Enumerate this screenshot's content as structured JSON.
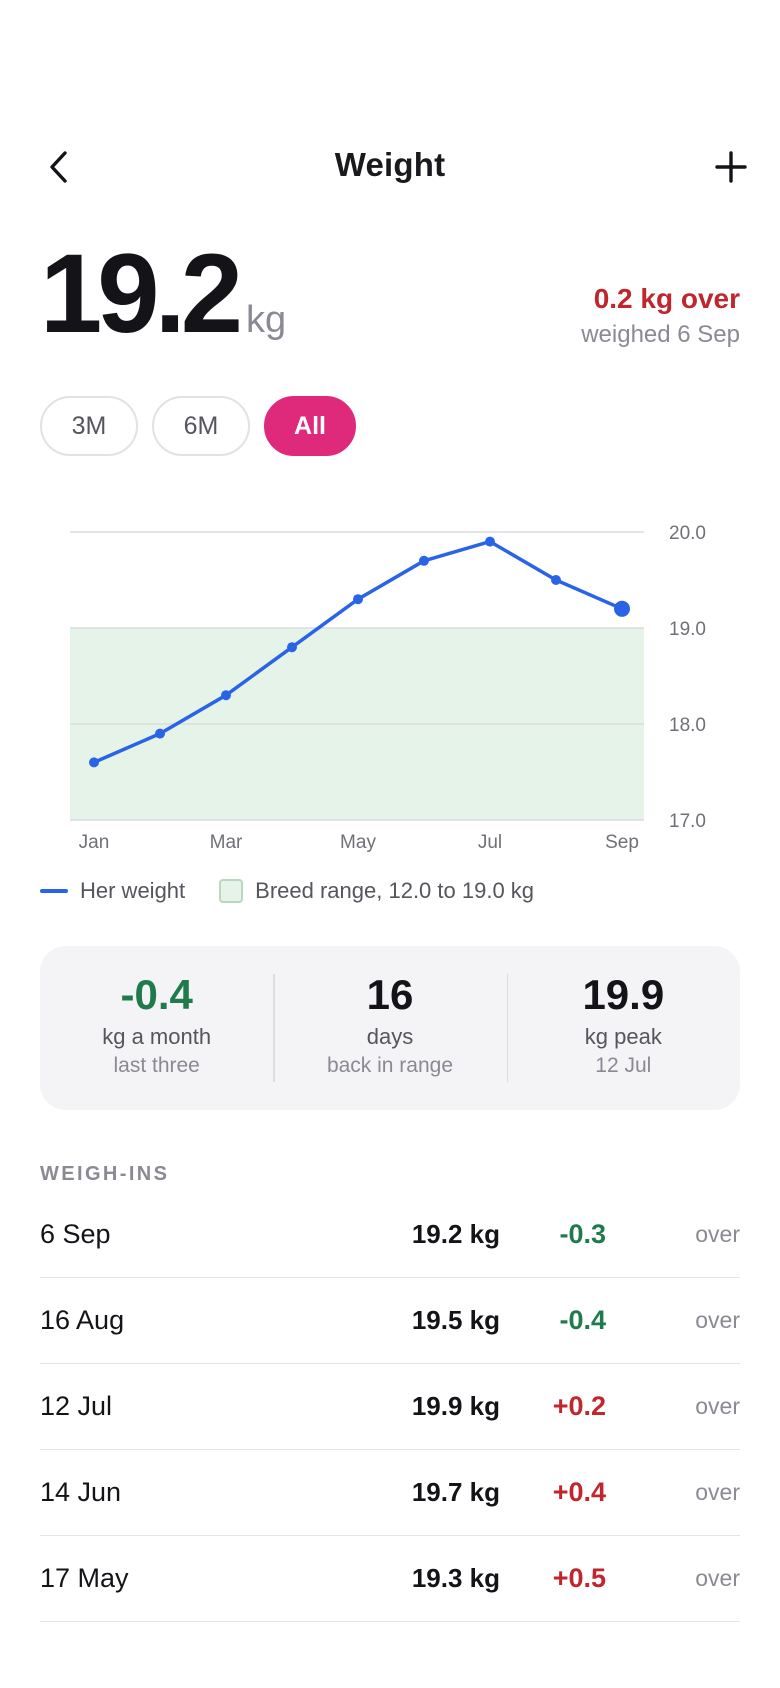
{
  "header": {
    "title": "Weight",
    "back_icon": "chevron-left-icon",
    "add_icon": "plus-icon"
  },
  "current": {
    "value": "19.2",
    "unit": "kg",
    "status": "0.2 kg over",
    "weighed": "weighed 6 Sep"
  },
  "ranges": [
    {
      "label": "3M",
      "active": false
    },
    {
      "label": "6M",
      "active": false
    },
    {
      "label": "All",
      "active": true
    }
  ],
  "chart_data": {
    "type": "line",
    "x_labels": [
      "Jan",
      "Mar",
      "May",
      "Jul",
      "Sep"
    ],
    "y_ticks": [
      "20.0",
      "19.0",
      "18.0",
      "17.0"
    ],
    "ylim": [
      17.0,
      20.0
    ],
    "series": [
      {
        "name": "Her weight",
        "color": "#2a64e6",
        "points": [
          {
            "x": "Jan",
            "y": 17.6
          },
          {
            "x": "Feb",
            "y": 17.9
          },
          {
            "x": "Mar",
            "y": 18.3
          },
          {
            "x": "Apr",
            "y": 18.8
          },
          {
            "x": "May",
            "y": 19.3
          },
          {
            "x": "Jun",
            "y": 19.7
          },
          {
            "x": "Jul",
            "y": 19.9
          },
          {
            "x": "Aug",
            "y": 19.5
          },
          {
            "x": "Sep",
            "y": 19.2
          }
        ]
      }
    ],
    "band": {
      "name": "Breed range, 12.0 to 19.0 kg",
      "y_min": 12.0,
      "y_max": 19.0,
      "color": "#e5f3e8"
    },
    "grid": true,
    "legend": "bottom-left"
  },
  "legend": {
    "weight": "Her weight",
    "range": "Breed range, 12.0 to 19.0 kg"
  },
  "stats": [
    {
      "value": "-0.4",
      "label": "kg a month",
      "sub": "last three",
      "tone": "green"
    },
    {
      "value": "16",
      "label": "days",
      "sub": "back in range",
      "tone": "normal"
    },
    {
      "value": "19.9",
      "label": "kg peak",
      "sub": "12 Jul",
      "tone": "normal"
    }
  ],
  "weigh_ins": {
    "title": "WEIGH-INS",
    "rows": [
      {
        "date": "6 Sep",
        "weight": "19.2 kg",
        "delta": "-0.3",
        "dir": "down",
        "status": "over"
      },
      {
        "date": "16 Aug",
        "weight": "19.5 kg",
        "delta": "-0.4",
        "dir": "down",
        "status": "over"
      },
      {
        "date": "12 Jul",
        "weight": "19.9 kg",
        "delta": "+0.2",
        "dir": "up",
        "status": "over"
      },
      {
        "date": "14 Jun",
        "weight": "19.7 kg",
        "delta": "+0.4",
        "dir": "up",
        "status": "over"
      },
      {
        "date": "17 May",
        "weight": "19.3 kg",
        "delta": "+0.5",
        "dir": "up",
        "status": "over"
      }
    ]
  }
}
